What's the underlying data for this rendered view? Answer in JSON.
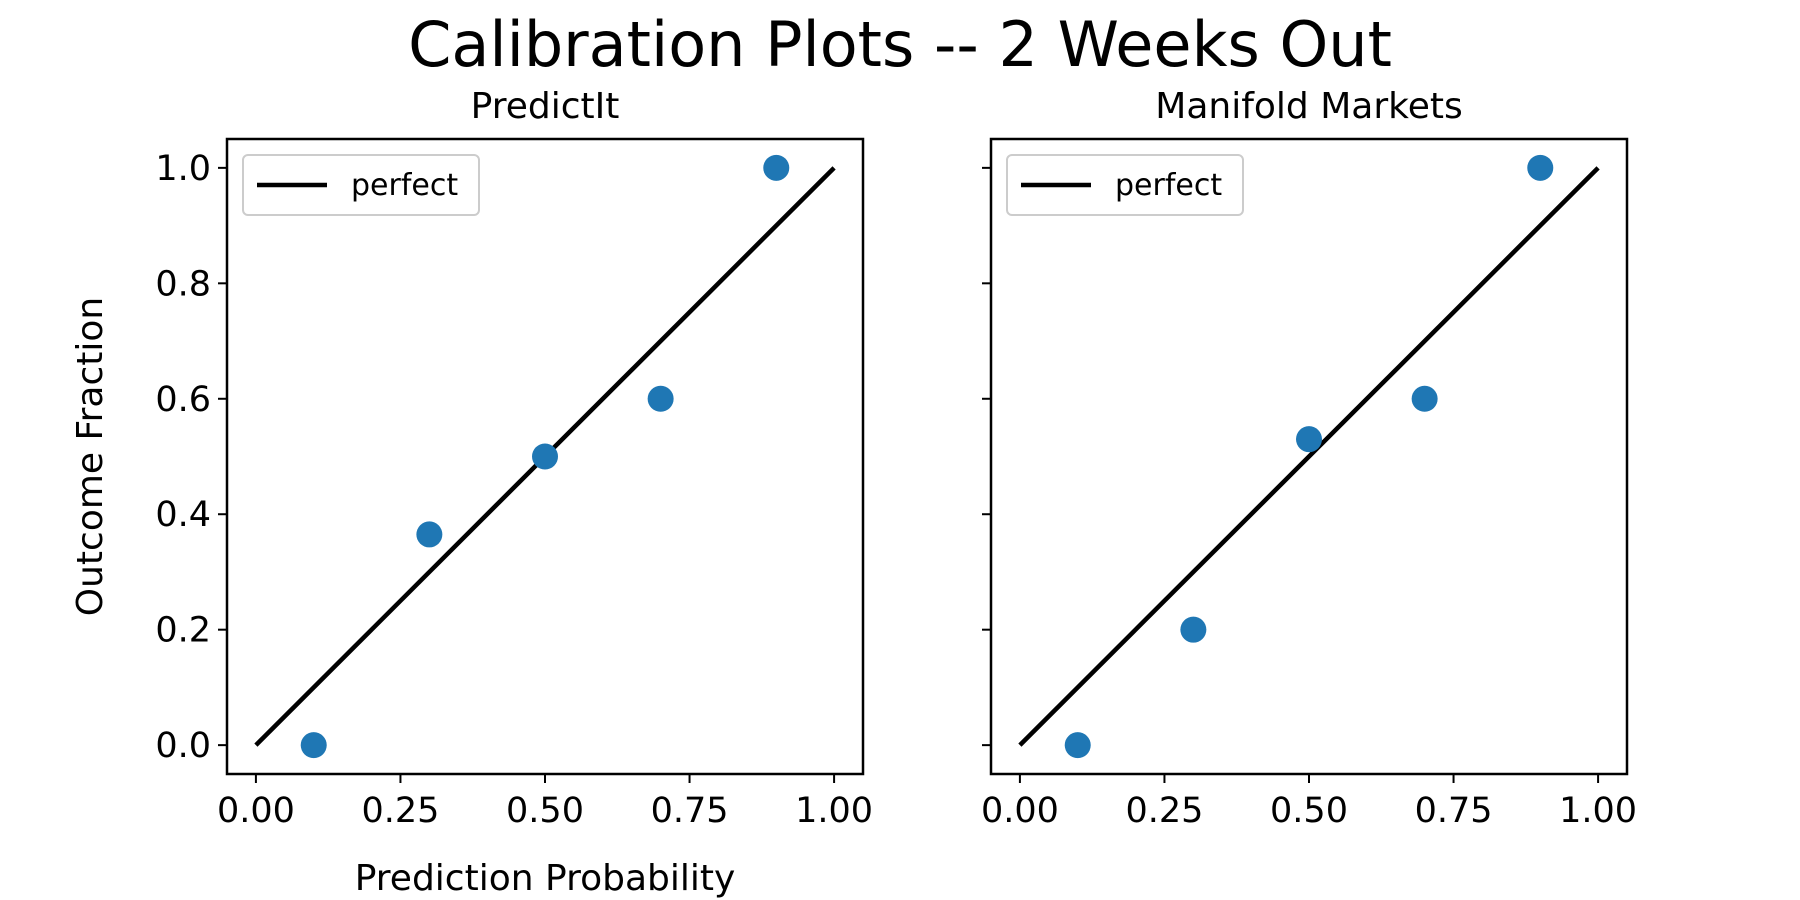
{
  "figure": {
    "title": "Calibration Plots -- 2 Weeks Out"
  },
  "chart_data": [
    {
      "type": "scatter",
      "title": "PredictIt",
      "xlabel": "Prediction Probability",
      "ylabel": "Outcome Fraction",
      "xlim": [
        -0.05,
        1.05
      ],
      "ylim": [
        -0.05,
        1.05
      ],
      "x_ticks": [
        "0.00",
        "0.25",
        "0.50",
        "0.75",
        "1.00"
      ],
      "y_ticks": [
        "0.0",
        "0.2",
        "0.4",
        "0.6",
        "0.8",
        "1.0"
      ],
      "show_y_tick_labels": true,
      "grid": false,
      "legend": {
        "position": "upper-left",
        "entries": [
          "perfect"
        ]
      },
      "reference_line": {
        "name": "perfect",
        "x": [
          0,
          1
        ],
        "y": [
          0,
          1
        ],
        "color": "#000000"
      },
      "series": [
        {
          "x": [
            0.1,
            0.3,
            0.5,
            0.7,
            0.9
          ],
          "y": [
            0.0,
            0.365,
            0.5,
            0.6,
            1.0
          ],
          "color": "#1f77b4"
        }
      ]
    },
    {
      "type": "scatter",
      "title": "Manifold Markets",
      "xlabel": "",
      "ylabel": "",
      "xlim": [
        -0.05,
        1.05
      ],
      "ylim": [
        -0.05,
        1.05
      ],
      "x_ticks": [
        "0.00",
        "0.25",
        "0.50",
        "0.75",
        "1.00"
      ],
      "y_ticks": [
        "0.0",
        "0.2",
        "0.4",
        "0.6",
        "0.8",
        "1.0"
      ],
      "show_y_tick_labels": false,
      "grid": false,
      "legend": {
        "position": "upper-left",
        "entries": [
          "perfect"
        ]
      },
      "reference_line": {
        "name": "perfect",
        "x": [
          0,
          1
        ],
        "y": [
          0,
          1
        ],
        "color": "#000000"
      },
      "series": [
        {
          "x": [
            0.1,
            0.3,
            0.5,
            0.7,
            0.9
          ],
          "y": [
            0.0,
            0.2,
            0.53,
            0.6,
            1.0
          ],
          "color": "#1f77b4"
        }
      ]
    }
  ]
}
